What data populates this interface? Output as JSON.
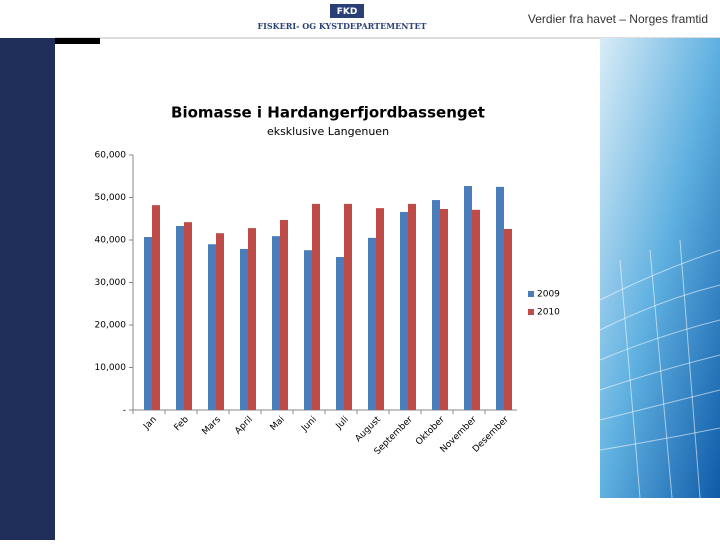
{
  "header": {
    "logo": "FKD",
    "department": "FISKERI- OG KYSTDEPARTEMENTET",
    "tagline": "Verdier fra havet – Norges framtid"
  },
  "chart_data": {
    "type": "bar",
    "title": "Biomasse i Hardangerfjordbassenget",
    "subtitle": "eksklusive Langenuen",
    "categories": [
      "Jan",
      "Feb",
      "Mars",
      "April",
      "Mai",
      "Juni",
      "Juli",
      "August",
      "September",
      "Oktober",
      "November",
      "Desember"
    ],
    "series": [
      {
        "name": "2009",
        "color": "#4a7ebb",
        "values": [
          40700,
          43300,
          39000,
          37900,
          40900,
          37600,
          36000,
          40500,
          46600,
          49400,
          52700,
          52500
        ]
      },
      {
        "name": "2010",
        "color": "#be4b48",
        "values": [
          48200,
          44200,
          41600,
          42800,
          44700,
          48500,
          48500,
          47500,
          48500,
          47300,
          47100,
          42600
        ]
      }
    ],
    "ylim": [
      0,
      60000
    ],
    "yticks": [
      {
        "value": 0,
        "label": "-"
      },
      {
        "value": 10000,
        "label": "10,000"
      },
      {
        "value": 20000,
        "label": "20,000"
      },
      {
        "value": 30000,
        "label": "30,000"
      },
      {
        "value": 40000,
        "label": "40,000"
      },
      {
        "value": 50000,
        "label": "50,000"
      },
      {
        "value": 60000,
        "label": "60,000"
      }
    ],
    "grid": false,
    "legend": "right"
  }
}
